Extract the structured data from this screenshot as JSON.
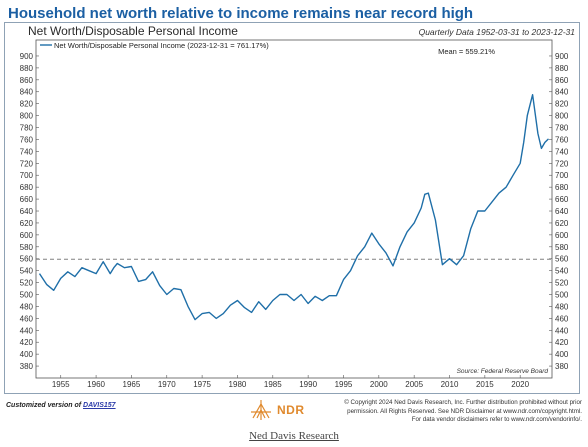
{
  "headline": "Household net worth relative to income remains near record high",
  "subtitle": "Net Worth/Disposable Personal Income",
  "date_range": "Quarterly Data 1952-03-31 to 2023-12-31",
  "colors": {
    "headline": "#1b5fa3",
    "series": "#1f6fa8",
    "mean_line": "#808080",
    "logo": "#e08a2e"
  },
  "footer": {
    "customized_prefix": "Customized version of ",
    "customized_link": "DAVIS157",
    "logo_text": "NDR",
    "copyright_line1": "© Copyright 2024 Ned Davis Research, Inc. Further distribution prohibited without prior",
    "copyright_line2": "permission. All Rights Reserved. See NDR Disclaimer at www.ndr.com/copyright.html.",
    "copyright_line3": "For data vendor disclaimers refer to www.ndr.com/vendorinfo/.",
    "caption": "Ned Davis Research"
  },
  "chart_data": {
    "type": "line",
    "legend": "Net Worth/Disposable Personal Income (2023-12-31 = 761.17%)",
    "mean_label": "Mean = 559.21%",
    "mean": 559.21,
    "source": "Source:  Federal Reserve Board",
    "ylim": [
      360,
      910
    ],
    "y_ticks": [
      380,
      400,
      420,
      440,
      460,
      480,
      500,
      520,
      540,
      560,
      580,
      600,
      620,
      640,
      660,
      680,
      700,
      720,
      740,
      760,
      780,
      800,
      820,
      840,
      860,
      880,
      900
    ],
    "xlim": [
      1951.5,
      2024.5
    ],
    "x_ticks": [
      1955,
      1960,
      1965,
      1970,
      1975,
      1980,
      1985,
      1990,
      1995,
      2000,
      2005,
      2010,
      2015,
      2020
    ],
    "series": [
      {
        "values": [
          [
            1952.0,
            535
          ],
          [
            1953.0,
            517
          ],
          [
            1954.0,
            507
          ],
          [
            1955.0,
            527
          ],
          [
            1956.0,
            538
          ],
          [
            1957.0,
            530
          ],
          [
            1958.0,
            545
          ],
          [
            1959.0,
            540
          ],
          [
            1960.0,
            535
          ],
          [
            1961.0,
            555
          ],
          [
            1962.0,
            535
          ],
          [
            1962.5,
            545
          ],
          [
            1963.0,
            552
          ],
          [
            1964.0,
            545
          ],
          [
            1965.0,
            547
          ],
          [
            1966.0,
            522
          ],
          [
            1967.0,
            525
          ],
          [
            1968.0,
            538
          ],
          [
            1969.0,
            515
          ],
          [
            1970.0,
            500
          ],
          [
            1971.0,
            510
          ],
          [
            1972.0,
            508
          ],
          [
            1973.0,
            480
          ],
          [
            1974.0,
            458
          ],
          [
            1975.0,
            468
          ],
          [
            1976.0,
            470
          ],
          [
            1977.0,
            460
          ],
          [
            1978.0,
            468
          ],
          [
            1979.0,
            482
          ],
          [
            1980.0,
            490
          ],
          [
            1981.0,
            478
          ],
          [
            1982.0,
            470
          ],
          [
            1983.0,
            488
          ],
          [
            1984.0,
            475
          ],
          [
            1985.0,
            490
          ],
          [
            1986.0,
            500
          ],
          [
            1987.0,
            500
          ],
          [
            1988.0,
            490
          ],
          [
            1989.0,
            500
          ],
          [
            1990.0,
            485
          ],
          [
            1991.0,
            497
          ],
          [
            1992.0,
            490
          ],
          [
            1993.0,
            498
          ],
          [
            1994.0,
            498
          ],
          [
            1995.0,
            525
          ],
          [
            1996.0,
            540
          ],
          [
            1997.0,
            565
          ],
          [
            1998.0,
            580
          ],
          [
            1999.0,
            603
          ],
          [
            2000.0,
            585
          ],
          [
            2001.0,
            570
          ],
          [
            2002.0,
            548
          ],
          [
            2003.0,
            580
          ],
          [
            2004.0,
            605
          ],
          [
            2005.0,
            620
          ],
          [
            2006.0,
            645
          ],
          [
            2006.5,
            668
          ],
          [
            2007.0,
            670
          ],
          [
            2008.0,
            625
          ],
          [
            2009.0,
            550
          ],
          [
            2010.0,
            560
          ],
          [
            2011.0,
            550
          ],
          [
            2012.0,
            565
          ],
          [
            2013.0,
            610
          ],
          [
            2014.0,
            640
          ],
          [
            2015.0,
            640
          ],
          [
            2016.0,
            655
          ],
          [
            2017.0,
            670
          ],
          [
            2018.0,
            680
          ],
          [
            2019.0,
            700
          ],
          [
            2020.0,
            720
          ],
          [
            2020.5,
            755
          ],
          [
            2021.0,
            800
          ],
          [
            2021.75,
            835
          ],
          [
            2022.5,
            770
          ],
          [
            2023.0,
            745
          ],
          [
            2023.5,
            755
          ],
          [
            2024.0,
            761
          ]
        ]
      }
    ]
  }
}
